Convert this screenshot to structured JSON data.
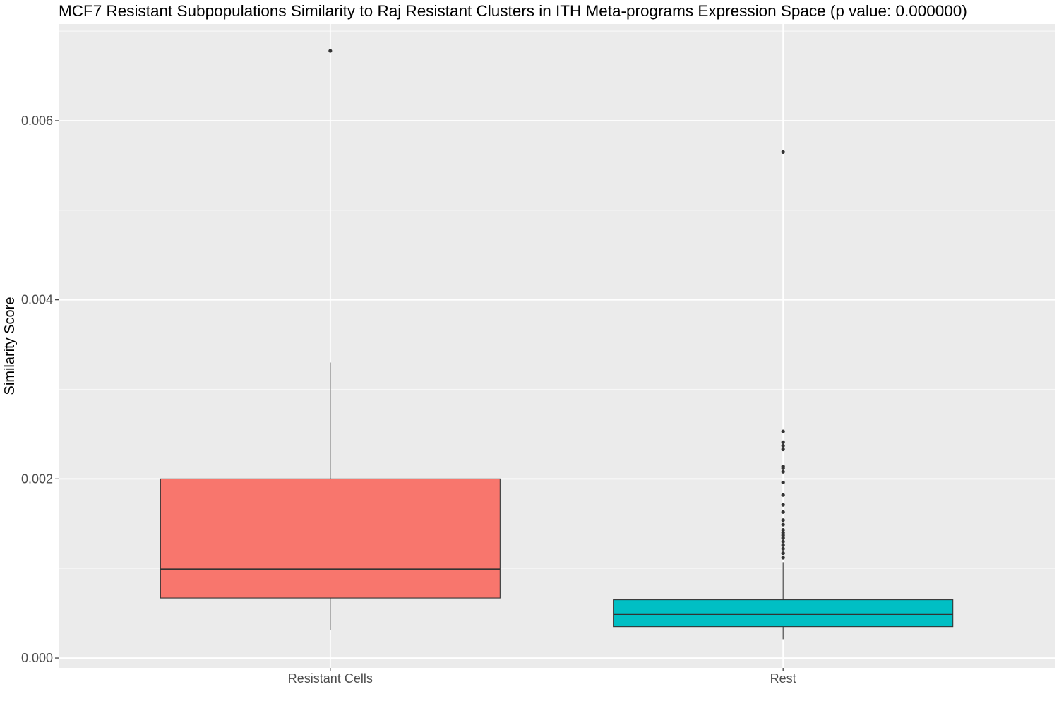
{
  "chart_data": {
    "type": "box",
    "title": "MCF7 Resistant Subpopulations Similarity to Raj Resistant Clusters in ITH Meta-programs Expression Space (p value: 0.000000)",
    "xlabel": "",
    "ylabel": "Similarity Score",
    "ylim": [
      -0.00011,
      0.00708
    ],
    "yticks": [
      0.0,
      0.002,
      0.004,
      0.006
    ],
    "ytick_labels": [
      "0.000",
      "0.002",
      "0.004",
      "0.006"
    ],
    "categories": [
      "Resistant Cells",
      "Rest"
    ],
    "grid": true,
    "boxes": [
      {
        "category": "Resistant Cells",
        "color": "#F8766D",
        "whisker_low": 0.00031,
        "q1": 0.00067,
        "median": 0.00099,
        "q3": 0.002,
        "whisker_high": 0.0033,
        "outliers": [
          0.00678
        ]
      },
      {
        "category": "Rest",
        "color": "#00BFC4",
        "whisker_low": 0.00021,
        "q1": 0.00035,
        "median": 0.00049,
        "q3": 0.00065,
        "whisker_high": 0.00107,
        "outliers": [
          0.00565,
          0.00253,
          0.00241,
          0.00237,
          0.00233,
          0.00214,
          0.00212,
          0.00208,
          0.00196,
          0.00182,
          0.00171,
          0.00163,
          0.00154,
          0.00149,
          0.00143,
          0.0014,
          0.00137,
          0.00134,
          0.0013,
          0.00126,
          0.00122,
          0.00117,
          0.00112
        ]
      }
    ]
  }
}
